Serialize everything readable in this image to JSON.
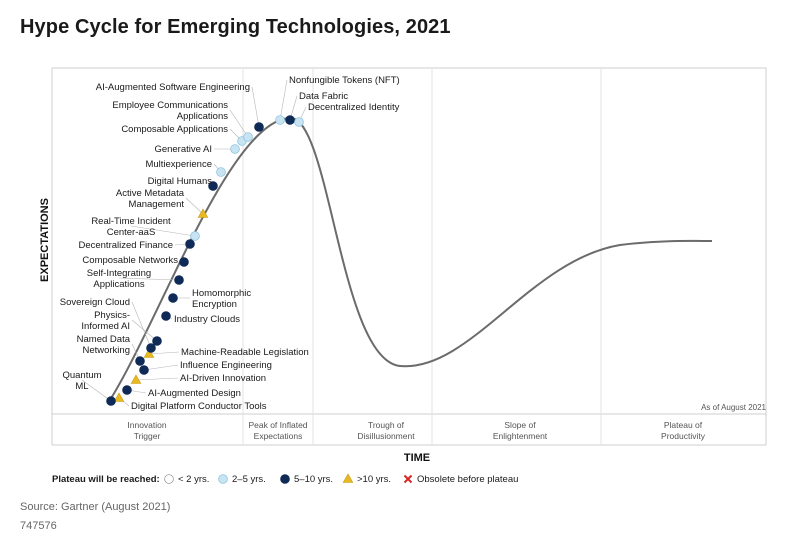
{
  "title": "Hype Cycle for Emerging Technologies, 2021",
  "source": "Source: Gartner (August 2021)",
  "doc_id": "747576",
  "as_of": "As of August 2021",
  "chart_data": {
    "type": "hype-cycle",
    "xlabel": "TIME",
    "ylabel": "EXPECTATIONS",
    "phases": [
      "Innovation Trigger",
      "Peak of Inflated Expectations",
      "Trough of Disillusionment",
      "Slope of Enlightenment",
      "Plateau of Productivity"
    ],
    "legend": {
      "title": "Plateau will be reached:",
      "items": [
        {
          "key": "lt2",
          "label": "< 2 yrs.",
          "color": "#ffffff"
        },
        {
          "key": "2to5",
          "label": "2–5 yrs.",
          "color": "#c8e4f2"
        },
        {
          "key": "5to10",
          "label": "5–10 yrs.",
          "color": "#0f2a56"
        },
        {
          "key": "gt10",
          "label": ">10 yrs.",
          "color": "#e8b923"
        },
        {
          "key": "obsolete",
          "label": "Obsolete before plateau",
          "color": "#d62828"
        }
      ]
    },
    "technologies": [
      {
        "name": "Digital Platform Conductor Tools",
        "plateau": "gt10"
      },
      {
        "name": "Quantum ML",
        "plateau": "5to10"
      },
      {
        "name": "AI-Augmented Design",
        "plateau": "5to10"
      },
      {
        "name": "AI-Driven Innovation",
        "plateau": "gt10"
      },
      {
        "name": "Influence Engineering",
        "plateau": "5to10"
      },
      {
        "name": "Named Data Networking",
        "plateau": "5to10"
      },
      {
        "name": "Machine-Readable Legislation",
        "plateau": "gt10"
      },
      {
        "name": "Physics-Informed AI",
        "plateau": "5to10"
      },
      {
        "name": "Sovereign Cloud",
        "plateau": "5to10"
      },
      {
        "name": "Industry Clouds",
        "plateau": "5to10"
      },
      {
        "name": "Homomorphic Encryption",
        "plateau": "5to10"
      },
      {
        "name": "Self-Integrating Applications",
        "plateau": "5to10"
      },
      {
        "name": "Composable Networks",
        "plateau": "5to10"
      },
      {
        "name": "Decentralized Finance",
        "plateau": "5to10"
      },
      {
        "name": "Real-Time Incident Center-aaS",
        "plateau": "2to5"
      },
      {
        "name": "Active Metadata Management",
        "plateau": "gt10"
      },
      {
        "name": "Digital Humans",
        "plateau": "5to10"
      },
      {
        "name": "Multiexperience",
        "plateau": "2to5"
      },
      {
        "name": "Generative AI",
        "plateau": "2to5"
      },
      {
        "name": "Composable Applications",
        "plateau": "2to5"
      },
      {
        "name": "Employee Communications Applications",
        "plateau": "2to5"
      },
      {
        "name": "AI-Augmented Software Engineering",
        "plateau": "5to10"
      },
      {
        "name": "Nonfungible Tokens (NFT)",
        "plateau": "2to5"
      },
      {
        "name": "Data Fabric",
        "plateau": "5to10"
      },
      {
        "name": "Decentralized Identity",
        "plateau": "2to5"
      }
    ]
  }
}
